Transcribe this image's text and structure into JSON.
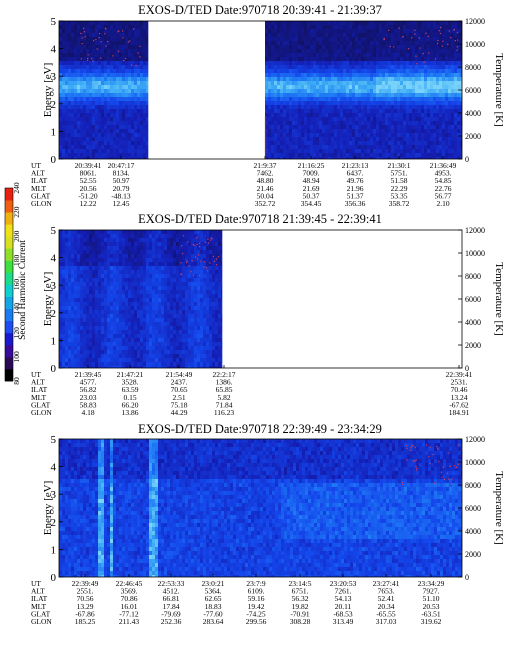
{
  "colorbar": {
    "label": "Second Harmonic Current",
    "ticks": [
      "80",
      "100",
      "120",
      "140",
      "160",
      "180",
      "200",
      "220",
      "240"
    ],
    "colors": [
      "#000000",
      "#2a0a55",
      "#3a0a9a",
      "#1a1acc",
      "#1e4cf0",
      "#1a7cf0",
      "#12a6e6",
      "#10cfd0",
      "#1adc8a",
      "#3ee040",
      "#8ee02a",
      "#d8e020",
      "#f0e018",
      "#f0b010",
      "#f06010",
      "#e82010"
    ]
  },
  "panels": [
    {
      "title": "EXOS-D/TED   Date:970718   20:39:41 - 21:39:37",
      "y_label": "Energy [eV]",
      "y2_label": "Temperature [K]",
      "y_ticks": [
        "0",
        "1",
        "2",
        "3",
        "4",
        "5"
      ],
      "y2_ticks": [
        "0",
        "2000",
        "4000",
        "6000",
        "8000",
        "10000",
        "12000"
      ],
      "ephemeris_labels": [
        "UT",
        "ALT",
        "ILAT",
        "MLT",
        "GLAT",
        "GLON"
      ],
      "columns": [
        {
          "UT": "20:39:41",
          "ALT": "8061.",
          "ILAT": "52.55",
          "MLT": "20.56",
          "GLAT": "-51.20",
          "GLON": "12.22"
        },
        {
          "UT": "20:47:17",
          "ALT": "8134.",
          "ILAT": "50.97",
          "MLT": "20.79",
          "GLAT": "-48.13",
          "GLON": "12.45"
        },
        {
          "UT": "21:9:37",
          "ALT": "7462.",
          "ILAT": "48.80",
          "MLT": "21.46",
          "GLAT": "50.04",
          "GLON": "352.72"
        },
        {
          "UT": "21:16:25",
          "ALT": "7009.",
          "ILAT": "48.94",
          "MLT": "21.69",
          "GLAT": "50.37",
          "GLON": "354.45"
        },
        {
          "UT": "21:23:13",
          "ALT": "6437.",
          "ILAT": "49.76",
          "MLT": "21.96",
          "GLAT": "51.37",
          "GLON": "356.36"
        },
        {
          "UT": "21:30:1",
          "ALT": "5751.",
          "ILAT": "51.58",
          "MLT": "22.29",
          "GLAT": "53.35",
          "GLON": "358.72"
        },
        {
          "UT": "21:36:49",
          "ALT": "4953.",
          "ILAT": "54.85",
          "MLT": "22.76",
          "GLAT": "56.77",
          "GLON": "2.10"
        }
      ]
    },
    {
      "title": "EXOS-D/TED   Date:970718   21:39:45 - 22:39:41",
      "y_label": "Energy [eV]",
      "y2_label": "Temperature [K]",
      "y_ticks": [
        "0",
        "1",
        "2",
        "3",
        "4",
        "5"
      ],
      "y2_ticks": [
        "0",
        "2000",
        "4000",
        "6000",
        "8000",
        "10000",
        "12000"
      ],
      "ephemeris_labels": [
        "UT",
        "ALT",
        "ILAT",
        "MLT",
        "GLAT",
        "GLON"
      ],
      "columns": [
        {
          "UT": "21:39:45",
          "ALT": "4577.",
          "ILAT": "56.82",
          "MLT": "23.03",
          "GLAT": "58.83",
          "GLON": "4.18"
        },
        {
          "UT": "21:47:21",
          "ALT": "3528.",
          "ILAT": "63.59",
          "MLT": "0.15",
          "GLAT": "66.20",
          "GLON": "13.86"
        },
        {
          "UT": "21:54:49",
          "ALT": "2437.",
          "ILAT": "70.65",
          "MLT": "2.51",
          "GLAT": "75.18",
          "GLON": "44.29"
        },
        {
          "UT": "22:2:17",
          "ALT": "1386.",
          "ILAT": "65.85",
          "MLT": "5.82",
          "GLAT": "71.84",
          "GLON": "116.23"
        },
        {
          "UT": "22:39:41",
          "ALT": "2531.",
          "ILAT": "70.46",
          "MLT": "13.24",
          "GLAT": "-67.62",
          "GLON": "184.91"
        }
      ]
    },
    {
      "title": "EXOS-D/TED   Date:970718   22:39:49 - 23:34:29",
      "y_label": "Energy [eV]",
      "y2_label": "Temperature [K]",
      "y_ticks": [
        "0",
        "1",
        "2",
        "3",
        "4",
        "5"
      ],
      "y2_ticks": [
        "0",
        "2000",
        "4000",
        "6000",
        "8000",
        "10000",
        "12000"
      ],
      "ephemeris_labels": [
        "UT",
        "ALT",
        "ILAT",
        "MLT",
        "GLAT",
        "GLON"
      ],
      "columns": [
        {
          "UT": "22:39:49",
          "ALT": "2551.",
          "ILAT": "70.56",
          "MLT": "13.29",
          "GLAT": "-67.86",
          "GLON": "185.25"
        },
        {
          "UT": "22:46:45",
          "ALT": "3569.",
          "ILAT": "70.86",
          "MLT": "16.01",
          "GLAT": "-77.12",
          "GLON": "211.43"
        },
        {
          "UT": "22:53:33",
          "ALT": "4512.",
          "ILAT": "66.81",
          "MLT": "17.84",
          "GLAT": "-79.69",
          "GLON": "252.36"
        },
        {
          "UT": "23:0:21",
          "ALT": "5364.",
          "ILAT": "62.65",
          "MLT": "18.83",
          "GLAT": "-77.60",
          "GLON": "283.64"
        },
        {
          "UT": "23:7:9",
          "ALT": "6109.",
          "ILAT": "59.16",
          "MLT": "19.42",
          "GLAT": "-74.25",
          "GLON": "299.56"
        },
        {
          "UT": "23:14:5",
          "ALT": "6751.",
          "ILAT": "56.32",
          "MLT": "19.82",
          "GLAT": "-70.91",
          "GLON": "308.28"
        },
        {
          "UT": "23:20:53",
          "ALT": "7261.",
          "ILAT": "54.13",
          "MLT": "20.11",
          "GLAT": "-68.53",
          "GLON": "313.49"
        },
        {
          "UT": "23:27:41",
          "ALT": "7653.",
          "ILAT": "52.41",
          "MLT": "20.34",
          "GLAT": "-65.55",
          "GLON": "317.03"
        },
        {
          "UT": "23:34:29",
          "ALT": "7927.",
          "ILAT": "51.10",
          "MLT": "20.53",
          "GLAT": "-63.51",
          "GLON": "319.62"
        }
      ]
    }
  ],
  "chart_data": [
    {
      "type": "heatmap",
      "title": "EXOS-D/TED   Date:970718   20:39:41 - 21:39:37",
      "ylabel": "Energy [eV]",
      "y2label": "Temperature [K]",
      "ylim": [
        0,
        5
      ],
      "y2lim": [
        0,
        12000
      ],
      "x": [
        "20:39:41",
        "20:47:17",
        "21:9:37",
        "21:16:25",
        "21:23:13",
        "21:30:1",
        "21:36:49"
      ],
      "data_gaps": [
        [
          "20:47:17",
          "21:9:37"
        ]
      ],
      "peak_energy_band_eV": [
        2.0,
        3.2
      ]
    },
    {
      "type": "heatmap",
      "title": "EXOS-D/TED   Date:970718   21:39:45 - 22:39:41",
      "ylabel": "Energy [eV]",
      "y2label": "Temperature [K]",
      "ylim": [
        0,
        5
      ],
      "y2lim": [
        0,
        12000
      ],
      "x": [
        "21:39:45",
        "21:47:21",
        "21:54:49",
        "22:2:17",
        "22:39:41"
      ],
      "data_gaps": [
        [
          "22:2:17",
          "22:39:41"
        ]
      ],
      "peak_energy_band_eV": [
        1.0,
        4.0
      ]
    },
    {
      "type": "heatmap",
      "title": "EXOS-D/TED   Date:970718   22:39:49 - 23:34:29",
      "ylabel": "Energy [eV]",
      "y2label": "Temperature [K]",
      "ylim": [
        0,
        5
      ],
      "y2lim": [
        0,
        12000
      ],
      "x": [
        "22:39:49",
        "22:46:45",
        "22:53:33",
        "23:0:21",
        "23:7:9",
        "23:14:5",
        "23:20:53",
        "23:27:41",
        "23:34:29"
      ],
      "data_gaps": [],
      "peak_energy_band_eV": [
        0.5,
        4.5
      ]
    }
  ]
}
